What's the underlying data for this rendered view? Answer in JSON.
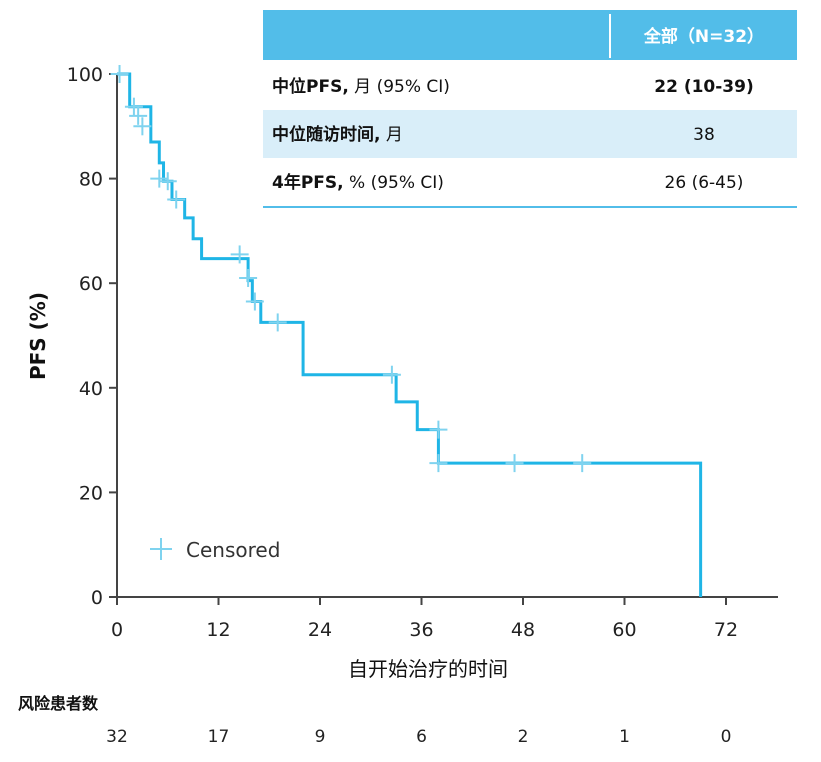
{
  "chart_data": {
    "type": "line",
    "subtype": "kaplan-meier",
    "xlabel": "自开始治疗的时间",
    "ylabel": "PFS (%)",
    "xlim": [
      0,
      78
    ],
    "ylim": [
      0,
      100
    ],
    "x_ticks": [
      0,
      12,
      24,
      36,
      48,
      60,
      72
    ],
    "y_ticks": [
      0,
      20,
      40,
      60,
      80,
      100
    ],
    "colors": {
      "curve": "#1fb5e6",
      "censor": "#7fd3ef",
      "table_header_bg": "#52bde9",
      "table_alt_bg": "#d9eef9",
      "table_line": "#52bde9",
      "axis": "#444444"
    },
    "series": [
      {
        "name": "全部",
        "steps": [
          {
            "x": 0,
            "y": 100
          },
          {
            "x": 1.5,
            "y": 93.75
          },
          {
            "x": 4.0,
            "y": 87.0
          },
          {
            "x": 5.0,
            "y": 83.0
          },
          {
            "x": 5.5,
            "y": 79.5
          },
          {
            "x": 6.5,
            "y": 76.0
          },
          {
            "x": 8.0,
            "y": 72.5
          },
          {
            "x": 9.0,
            "y": 68.5
          },
          {
            "x": 10.0,
            "y": 64.7
          },
          {
            "x": 15.5,
            "y": 60.5
          },
          {
            "x": 16.0,
            "y": 56.5
          },
          {
            "x": 17.0,
            "y": 52.5
          },
          {
            "x": 22.0,
            "y": 42.5
          },
          {
            "x": 33.0,
            "y": 37.3
          },
          {
            "x": 35.5,
            "y": 32.0
          },
          {
            "x": 38.0,
            "y": 25.6
          },
          {
            "x": 69.0,
            "y": 0
          }
        ],
        "censored": [
          {
            "x": 0.3,
            "y": 100
          },
          {
            "x": 2.0,
            "y": 93.75
          },
          {
            "x": 2.5,
            "y": 92.0
          },
          {
            "x": 3.0,
            "y": 90.0
          },
          {
            "x": 5.0,
            "y": 80.0
          },
          {
            "x": 6.0,
            "y": 79.5
          },
          {
            "x": 7.0,
            "y": 76.0
          },
          {
            "x": 14.5,
            "y": 65.5
          },
          {
            "x": 15.5,
            "y": 61.0
          },
          {
            "x": 16.3,
            "y": 56.5
          },
          {
            "x": 19.0,
            "y": 52.5
          },
          {
            "x": 32.5,
            "y": 42.5
          },
          {
            "x": 38.0,
            "y": 32.0
          },
          {
            "x": 38.0,
            "y": 25.6
          },
          {
            "x": 47.0,
            "y": 25.6
          },
          {
            "x": 55.0,
            "y": 25.6
          }
        ]
      }
    ],
    "legend": {
      "label": "Censored",
      "placement": "bottom-left"
    },
    "risk_table": {
      "title": "风险患者数",
      "times": [
        0,
        12,
        24,
        36,
        48,
        60,
        72
      ],
      "values": [
        "32",
        "17",
        "9",
        "6",
        "2",
        "1",
        "0"
      ]
    },
    "summary_table": {
      "header": "全部（N=32）",
      "rows": [
        {
          "label_bold": "中位PFS,",
          "label_rest": " 月 (95% CI)",
          "value": "22 (10-39)",
          "value_bold": true
        },
        {
          "label_bold": "中位随访时间,",
          "label_rest": " 月",
          "value": "38",
          "value_bold": false
        },
        {
          "label_bold": "4年PFS,",
          "label_rest": " % (95% CI)",
          "value": "26 (6-45)",
          "value_bold": false
        }
      ]
    }
  }
}
